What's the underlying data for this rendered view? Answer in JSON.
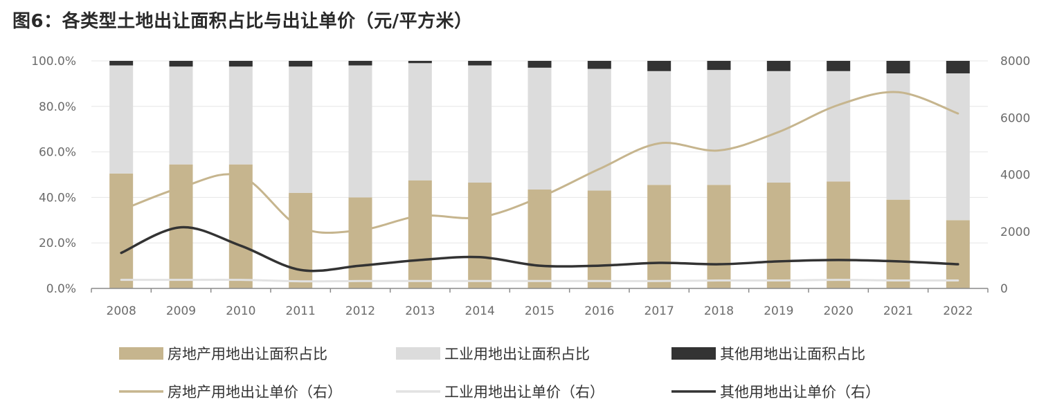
{
  "title": "图6：各类型土地出让面积占比与出让单价（元/平方米）",
  "chart_data": {
    "type": "bar",
    "stacked": true,
    "categories": [
      "2008",
      "2009",
      "2010",
      "2011",
      "2012",
      "2013",
      "2014",
      "2015",
      "2016",
      "2017",
      "2018",
      "2019",
      "2020",
      "2021",
      "2022"
    ],
    "y_left": {
      "ticks": [
        "0.0%",
        "20.0%",
        "40.0%",
        "60.0%",
        "80.0%",
        "100.0%"
      ],
      "range": [
        0,
        100
      ]
    },
    "y_right": {
      "ticks": [
        "0",
        "2000",
        "4000",
        "6000",
        "8000"
      ],
      "range": [
        0,
        8000
      ]
    },
    "grid": true,
    "legend_position": "bottom",
    "bar_series": [
      {
        "name": "房地产用地出让面积占比",
        "color": "#c6b58e",
        "values": [
          50.5,
          54.5,
          54.5,
          42,
          40,
          47.5,
          46.5,
          43.5,
          43,
          45.5,
          45.5,
          46.5,
          47,
          39,
          30
        ]
      },
      {
        "name": "工业用地出让面积占比",
        "color": "#dcdcdc",
        "values": [
          47.5,
          43,
          43,
          55.5,
          58,
          51.5,
          51.5,
          53.5,
          53.5,
          50,
          50.5,
          49,
          48.5,
          55.5,
          64.5
        ]
      },
      {
        "name": "其他用地出让面积占比",
        "color": "#333333",
        "values": [
          2,
          2.5,
          2.5,
          2.5,
          2,
          1,
          2,
          3,
          3.5,
          4.5,
          4,
          4.5,
          4.5,
          5.5,
          5.5
        ]
      }
    ],
    "line_series": [
      {
        "name": "房地产用地出让单价（右）",
        "color": "#c6b58e",
        "values": [
          2750,
          3550,
          3950,
          2150,
          2050,
          2550,
          2500,
          3200,
          4200,
          5100,
          4850,
          5500,
          6450,
          6900,
          6150
        ]
      },
      {
        "name": "工业用地出让单价（右）",
        "color": "#e2e2e2",
        "values": [
          300,
          300,
          300,
          250,
          260,
          260,
          260,
          260,
          260,
          260,
          280,
          280,
          300,
          280,
          280
        ]
      },
      {
        "name": "其他用地出让单价（右）",
        "color": "#333333",
        "values": [
          1250,
          2150,
          1500,
          650,
          800,
          1000,
          1100,
          800,
          800,
          900,
          850,
          950,
          1000,
          950,
          850
        ]
      }
    ]
  }
}
